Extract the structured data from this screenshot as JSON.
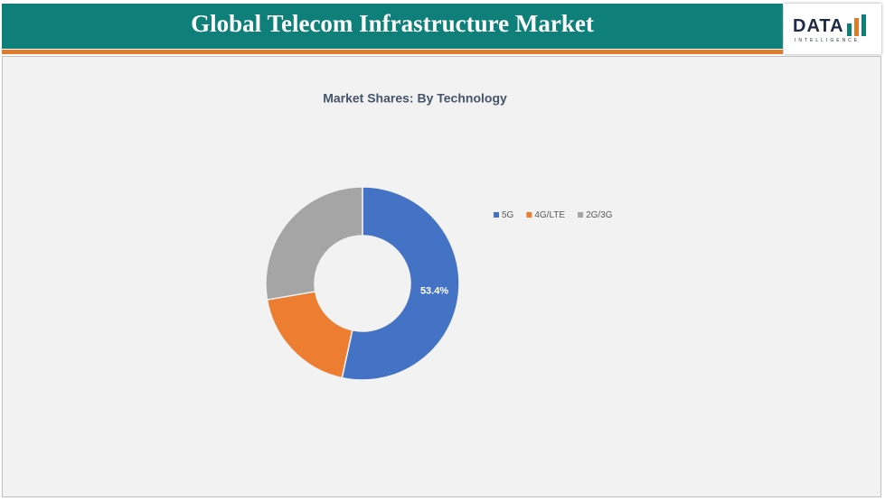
{
  "header": {
    "title": "Global Telecom Infrastructure Market",
    "logo_main": "DATA",
    "logo_sub": "INTELLIGENCE"
  },
  "chart_data": {
    "type": "donut",
    "title": "Market Shares: By Technology",
    "categories": [
      "5G",
      "4G/LTE",
      "2G/3G"
    ],
    "values": [
      53.4,
      18.9,
      27.7
    ],
    "value_labels": [
      "53.4%",
      null,
      null
    ],
    "colors": [
      "#4472c4",
      "#ed7d31",
      "#a5a5a5"
    ],
    "legend": "right"
  }
}
